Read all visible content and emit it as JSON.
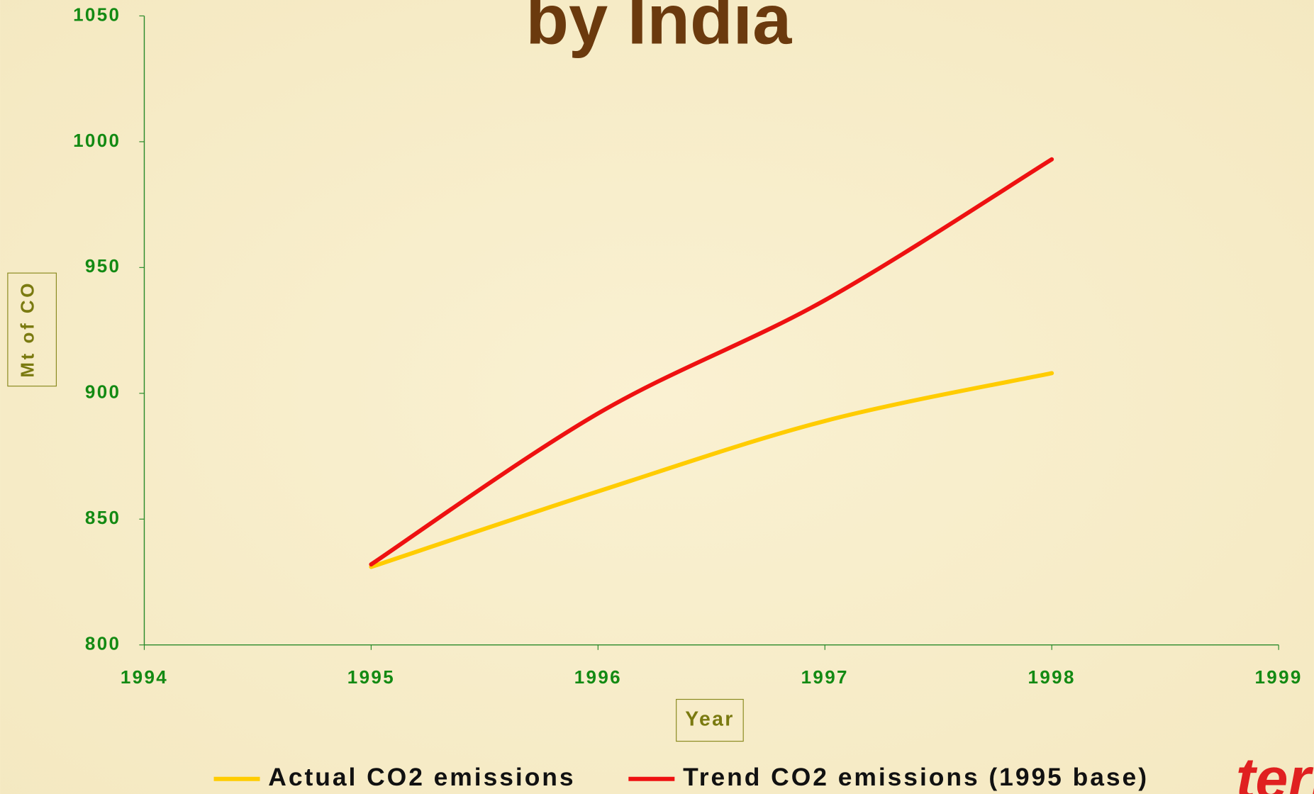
{
  "chart_data": {
    "type": "line",
    "title": "by India",
    "x_label": "Year",
    "y_label": "Mt of CO",
    "x": [
      1995,
      1996,
      1997,
      1998
    ],
    "series": [
      {
        "name": "Actual CO2 emissions",
        "color": "#ffcc00",
        "values": [
          831,
          861,
          889,
          908
        ]
      },
      {
        "name": "Trend CO2 emissions (1995 base)",
        "color": "#ee1111",
        "values": [
          832,
          892,
          937,
          993
        ]
      }
    ],
    "xlim": [
      1994,
      1999
    ],
    "xticks": [
      1994,
      1995,
      1996,
      1997,
      1998,
      1999
    ],
    "ylim": [
      800,
      1050
    ],
    "yticks": [
      800,
      850,
      900,
      950,
      1000,
      1050
    ],
    "grid": false,
    "legend": "bottom"
  },
  "logo": "teri"
}
